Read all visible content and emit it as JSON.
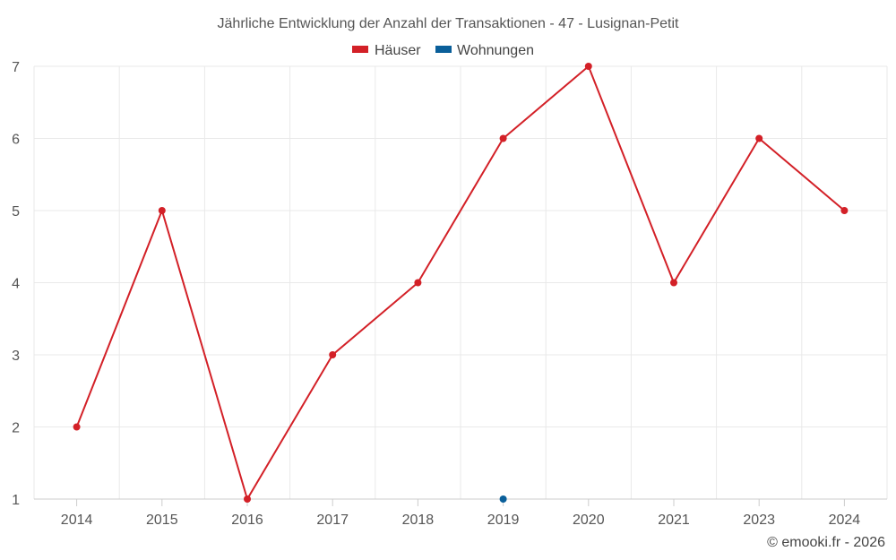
{
  "chart_data": {
    "type": "line",
    "title": "Jährliche Entwicklung der Anzahl der Transaktionen - 47 - Lusignan-Petit",
    "categories": [
      "2014",
      "2015",
      "2016",
      "2017",
      "2018",
      "2019",
      "2020",
      "2021",
      "2023",
      "2024"
    ],
    "series": [
      {
        "name": "Häuser",
        "color": "#d32027",
        "values": [
          2,
          5,
          1,
          3,
          4,
          6,
          7,
          4,
          6,
          5
        ]
      },
      {
        "name": "Wohnungen",
        "color": "#0a5f9a",
        "values": [
          null,
          null,
          null,
          null,
          null,
          1,
          null,
          null,
          null,
          null
        ]
      }
    ],
    "yticks": [
      "1",
      "2",
      "3",
      "4",
      "5",
      "6",
      "7"
    ],
    "ylim": [
      1,
      7
    ],
    "grid": true,
    "legend": "top-center",
    "xlabel": "",
    "ylabel": ""
  },
  "credit": "© emooki.fr - 2026"
}
